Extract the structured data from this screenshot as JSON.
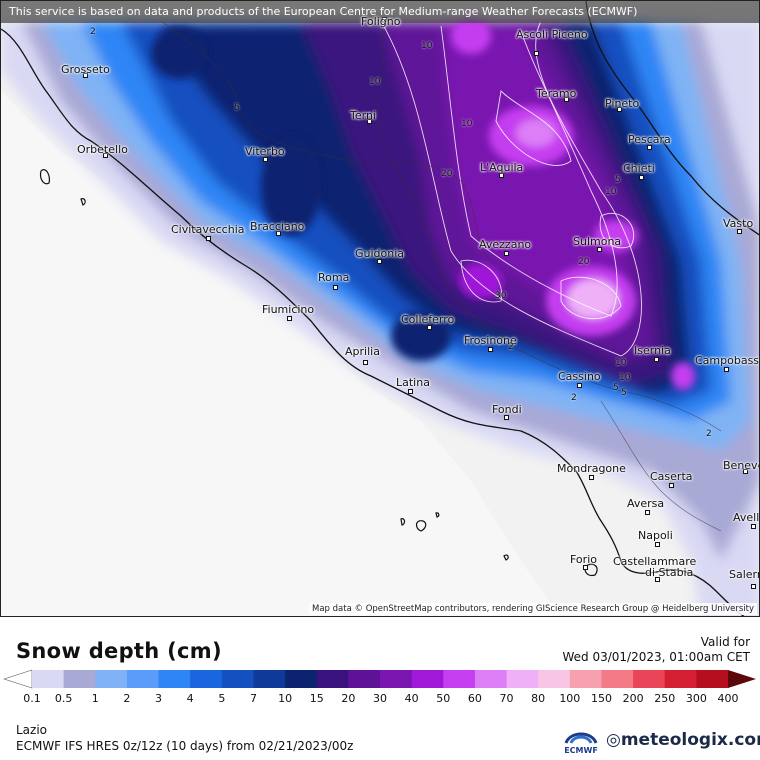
{
  "banner": {
    "text": "This service is based on data and products of the European Centre for Medium-range Weather Forecasts (ECMWF)"
  },
  "attribution": {
    "text": "Map data © OpenStreetMap contributors, rendering GIScience Research Group @ Heidelberg University"
  },
  "map": {
    "cities": [
      {
        "name": "Foligno"
      },
      {
        "name": "Ascoli Piceno"
      },
      {
        "name": "Grosseto"
      },
      {
        "name": "Teramo"
      },
      {
        "name": "Terni"
      },
      {
        "name": "Pineto"
      },
      {
        "name": "Orbetello"
      },
      {
        "name": "Pescara"
      },
      {
        "name": "Viterbo"
      },
      {
        "name": "Chieti"
      },
      {
        "name": "L'Aquila"
      },
      {
        "name": "Vasto"
      },
      {
        "name": "Civitavecchia"
      },
      {
        "name": "Bracciano"
      },
      {
        "name": "Sulmona"
      },
      {
        "name": "Avezzano"
      },
      {
        "name": "Guidonia"
      },
      {
        "name": "Roma"
      },
      {
        "name": "Fiumicino"
      },
      {
        "name": "Colleferro"
      },
      {
        "name": "Frosinone"
      },
      {
        "name": "Isernia"
      },
      {
        "name": "Campobasso"
      },
      {
        "name": "Aprilia"
      },
      {
        "name": "Cassino"
      },
      {
        "name": "Latina"
      },
      {
        "name": "Fondi"
      },
      {
        "name": "Mondragone"
      },
      {
        "name": "Caserta"
      },
      {
        "name": "Benevento"
      },
      {
        "name": "Aversa"
      },
      {
        "name": "Avellino"
      },
      {
        "name": "Napoli"
      },
      {
        "name": "Forio"
      },
      {
        "name": "Castellammare di Stabia"
      },
      {
        "name": "Salerno"
      }
    ],
    "contour_labels": [
      "2",
      "10",
      "5",
      "10",
      "20",
      "10",
      "20",
      "5",
      "10",
      "30",
      "2",
      "5",
      "10",
      "10",
      "2",
      "2",
      "5"
    ]
  },
  "legend": {
    "title": "Snow depth (cm)",
    "valid_label": "Valid for",
    "valid_time": "Wed 03/01/2023, 01:00am CET",
    "unit": "cm",
    "levels": [
      "0.1",
      "0.5",
      "1",
      "2",
      "3",
      "4",
      "5",
      "7",
      "10",
      "15",
      "20",
      "30",
      "40",
      "50",
      "60",
      "70",
      "80",
      "100",
      "150",
      "200",
      "250",
      "300",
      "400"
    ],
    "colors": [
      "#d9d9f4",
      "#a9a9d6",
      "#7fb3f5",
      "#5a9cf8",
      "#2e85f5",
      "#1a66e0",
      "#1450c0",
      "#103a9a",
      "#0c2470",
      "#3a127e",
      "#5e1298",
      "#7a16b0",
      "#a018d8",
      "#c53ef0",
      "#dc7ef5",
      "#efb0f8",
      "#f8c6e4",
      "#f6a0b0",
      "#f37a86",
      "#ea4458",
      "#d41e32",
      "#b50e1e",
      "#8a0a14",
      "#5a0808"
    ],
    "region": "Lazio",
    "model_text": "ECMWF IFS HRES 0z/12z (10 days) from 02/21/2023/00z",
    "ecmwf_logo_text": "ECMWF",
    "brand": "meteologix.com"
  }
}
